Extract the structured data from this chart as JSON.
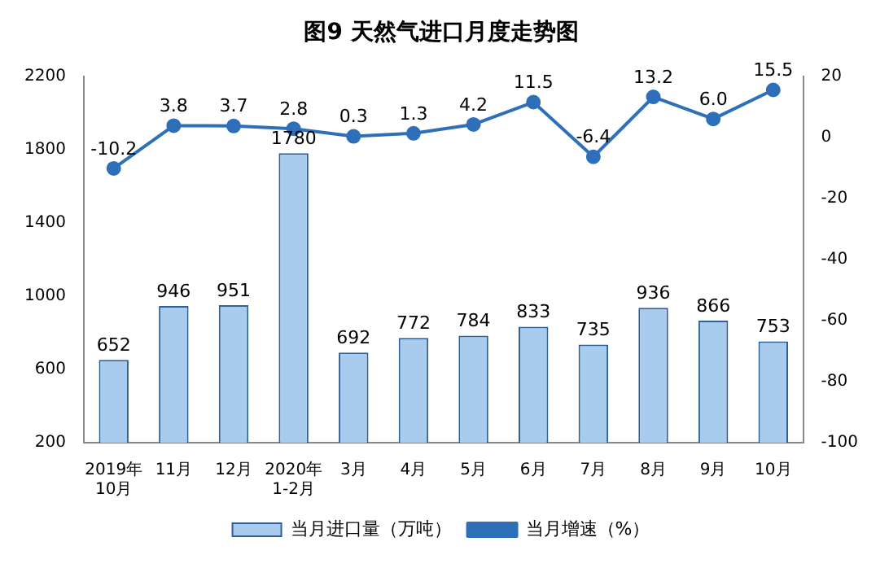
{
  "chart_data": {
    "type": "bar",
    "title": "图9 天然气进口月度走势图",
    "categories": [
      "2019年\n10月",
      "11月",
      "12月",
      "2020年\n1-2月",
      "3月",
      "4月",
      "5月",
      "6月",
      "7月",
      "8月",
      "9月",
      "10月"
    ],
    "series": [
      {
        "name": "当月进口量（万吨）",
        "color": "#a8cbee",
        "values": [
          652,
          946,
          951,
          1780,
          692,
          772,
          784,
          833,
          735,
          936,
          866,
          753
        ],
        "value_labels": [
          "652",
          "946",
          "951",
          "1780",
          "692",
          "772",
          "784",
          "833",
          "735",
          "936",
          "866",
          "753"
        ]
      },
      {
        "name": "当月增速（%）",
        "type": "line",
        "axis": "y2",
        "color": "#2e6fba",
        "values": [
          -10.2,
          3.8,
          3.7,
          2.8,
          0.3,
          1.3,
          4.2,
          11.5,
          -6.4,
          13.2,
          6.0,
          15.5
        ],
        "value_labels": [
          "-10.2",
          "3.8",
          "3.7",
          "2.8",
          "0.3",
          "1.3",
          "4.2",
          "11.5",
          "-6.4",
          "13.2",
          "6.0",
          "15.5"
        ]
      }
    ],
    "ylim": [
      200,
      2200
    ],
    "yticks": [
      200,
      600,
      1000,
      1400,
      1800,
      2200
    ],
    "y2lim": [
      -100,
      20
    ],
    "y2ticks": [
      -100,
      -80,
      -60,
      -40,
      -20,
      0,
      20
    ],
    "grid": false,
    "legend": "bottom",
    "marker": "circle",
    "line_style": "solid"
  }
}
